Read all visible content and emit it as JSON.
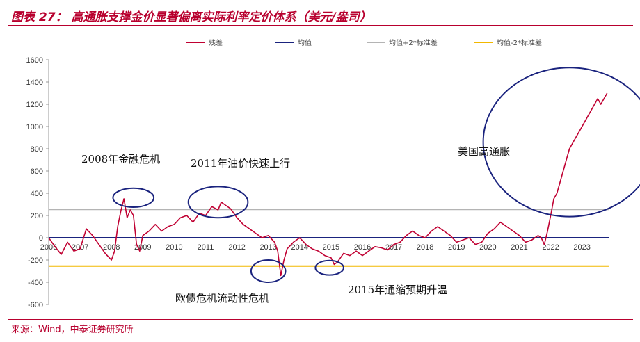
{
  "header": {
    "title": "图表 27：  高通胀支撑金价显著偏离实际利率定价体系（美元/盎司）"
  },
  "footer": {
    "source": "来源：Wind，中泰证券研究所"
  },
  "colors": {
    "title": "#b8002e",
    "residual": "#c00032",
    "mean": "#1a237e",
    "upper": "#b4b4b4",
    "lower": "#f2b800",
    "circle": "#1a237e"
  },
  "chart_data": {
    "type": "line",
    "title": "",
    "xlabel": "",
    "ylabel": "",
    "xlim": [
      2006.0,
      2023.85
    ],
    "ylim": [
      -600,
      1600
    ],
    "yticks": [
      -600,
      -400,
      -200,
      0,
      200,
      400,
      600,
      800,
      1000,
      1200,
      1400,
      1600
    ],
    "xticks": [
      "2006",
      "2007",
      "2008",
      "2009",
      "2010",
      "2011",
      "2012",
      "2013",
      "2014",
      "2015",
      "2016",
      "2017",
      "2018",
      "2019",
      "2020",
      "2021",
      "2022",
      "2023"
    ],
    "legend_position": "top",
    "legend": [
      "残差",
      "均值",
      "均值+2*标准差",
      "均值-2*标准差"
    ],
    "series": [
      {
        "name": "残差",
        "x": [
          2006.0,
          2006.2,
          2006.4,
          2006.6,
          2006.8,
          2007.0,
          2007.2,
          2007.4,
          2007.6,
          2007.8,
          2008.0,
          2008.1,
          2008.2,
          2008.3,
          2008.4,
          2008.5,
          2008.6,
          2008.7,
          2008.8,
          2008.9,
          2009.0,
          2009.2,
          2009.4,
          2009.6,
          2009.8,
          2010.0,
          2010.2,
          2010.4,
          2010.6,
          2010.8,
          2011.0,
          2011.2,
          2011.4,
          2011.5,
          2011.6,
          2011.8,
          2012.0,
          2012.2,
          2012.4,
          2012.6,
          2012.8,
          2013.0,
          2013.2,
          2013.3,
          2013.4,
          2013.5,
          2013.6,
          2013.8,
          2014.0,
          2014.2,
          2014.4,
          2014.6,
          2014.8,
          2015.0,
          2015.1,
          2015.2,
          2015.4,
          2015.6,
          2015.8,
          2016.0,
          2016.2,
          2016.4,
          2016.6,
          2016.8,
          2017.0,
          2017.2,
          2017.4,
          2017.6,
          2017.8,
          2018.0,
          2018.2,
          2018.4,
          2018.6,
          2018.8,
          2019.0,
          2019.2,
          2019.4,
          2019.6,
          2019.8,
          2020.0,
          2020.2,
          2020.4,
          2020.6,
          2020.8,
          2021.0,
          2021.2,
          2021.4,
          2021.6,
          2021.7,
          2021.8,
          2021.9,
          2022.0,
          2022.1,
          2022.2,
          2022.3,
          2022.4,
          2022.5,
          2022.6,
          2022.7,
          2022.8,
          2022.9,
          2023.0,
          2023.1,
          2023.2,
          2023.3,
          2023.4,
          2023.5,
          2023.6,
          2023.7,
          2023.8
        ],
        "values": [
          0,
          -80,
          -150,
          -40,
          -120,
          -100,
          80,
          20,
          -60,
          -140,
          -200,
          -120,
          100,
          240,
          350,
          180,
          250,
          200,
          -60,
          -120,
          20,
          60,
          120,
          60,
          100,
          120,
          180,
          200,
          140,
          220,
          200,
          280,
          250,
          320,
          300,
          260,
          180,
          120,
          80,
          40,
          0,
          20,
          -40,
          -120,
          -340,
          -200,
          -100,
          -40,
          0,
          -60,
          -100,
          -120,
          -160,
          -180,
          -240,
          -220,
          -140,
          -160,
          -120,
          -160,
          -120,
          -80,
          -90,
          -110,
          -60,
          -40,
          20,
          60,
          20,
          0,
          60,
          100,
          60,
          20,
          -40,
          -20,
          0,
          -60,
          -40,
          40,
          80,
          140,
          100,
          60,
          20,
          -40,
          -20,
          20,
          0,
          -60,
          60,
          200,
          350,
          400,
          500,
          600,
          700,
          800,
          850,
          900,
          950,
          1000,
          1050,
          1100,
          1150,
          1200,
          1250,
          1200,
          1250,
          1300
        ]
      },
      {
        "name": "均值",
        "x": [
          2006.0,
          2023.85
        ],
        "values": [
          0,
          0
        ]
      },
      {
        "name": "均值+2*标准差",
        "x": [
          2006.0,
          2023.85
        ],
        "values": [
          255,
          255
        ]
      },
      {
        "name": "均值-2*标准差",
        "x": [
          2006.0,
          2023.85
        ],
        "values": [
          -255,
          -255
        ]
      }
    ],
    "annotations": [
      {
        "text": "2008年金融危机",
        "x": 2008.7,
        "y": 360,
        "rx": 0.65,
        "ry": 85
      },
      {
        "text": "2011年油价快速上行",
        "x": 2011.4,
        "y": 320,
        "rx": 0.95,
        "ry": 140
      },
      {
        "text": "欧债危机流动性危机",
        "x": 2013.0,
        "y": -300,
        "rx": 0.55,
        "ry": 100
      },
      {
        "text": "2015年通缩预期升温",
        "x": 2014.95,
        "y": -270,
        "rx": 0.45,
        "ry": 65
      },
      {
        "text": "美国高通胀",
        "x": 2022.6,
        "y": 860,
        "rx": 2.75,
        "ry": 670
      }
    ]
  }
}
